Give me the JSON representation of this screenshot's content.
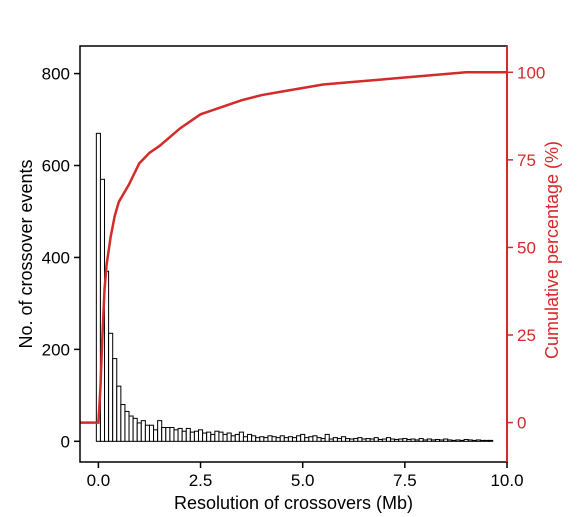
{
  "chart_data": {
    "type": "bar",
    "title": "",
    "xlabel": "Resolution of crossovers (Mb)",
    "ylabel": "No. of crossover events",
    "y2label": "Cumulative percentage (%)",
    "xlim": [
      -0.45,
      10.0
    ],
    "ylim": [
      -45,
      860
    ],
    "y2lim": [
      -11.25,
      107.5
    ],
    "xticks": [
      "0.0",
      "2.5",
      "5.0",
      "7.5",
      "10.0"
    ],
    "xtick_values": [
      0,
      2.5,
      5.0,
      7.5,
      10.0
    ],
    "yticks": [
      "0",
      "200",
      "400",
      "600",
      "800"
    ],
    "ytick_values": [
      0,
      200,
      400,
      600,
      800
    ],
    "y2ticks": [
      "0",
      "25",
      "50",
      "75",
      "100"
    ],
    "y2tick_values": [
      0,
      25,
      50,
      75,
      100
    ],
    "grid": false,
    "legend": "none",
    "colors": {
      "bars": "#000000",
      "bar_fill": "#ffffff",
      "cumulative": "#d42a2a",
      "y2axis": "#d42a2a"
    },
    "histogram": {
      "bin_width": 0.1,
      "bin_start": -0.05,
      "counts": [
        670,
        570,
        370,
        235,
        180,
        120,
        80,
        65,
        55,
        50,
        40,
        45,
        35,
        35,
        25,
        45,
        30,
        30,
        30,
        25,
        28,
        22,
        28,
        20,
        22,
        25,
        18,
        20,
        15,
        22,
        20,
        15,
        18,
        12,
        15,
        20,
        10,
        15,
        12,
        8,
        10,
        8,
        12,
        10,
        8,
        12,
        8,
        10,
        8,
        12,
        15,
        8,
        10,
        12,
        8,
        6,
        15,
        5,
        8,
        6,
        10,
        6,
        5,
        6,
        8,
        5,
        6,
        5,
        8,
        4,
        5,
        8,
        5,
        4,
        5,
        6,
        4,
        5,
        3,
        6,
        3,
        5,
        3,
        4,
        3,
        5,
        3,
        2,
        3,
        2,
        4,
        3,
        2,
        3,
        2,
        2,
        2
      ]
    },
    "cumulative": {
      "x": [
        -0.45,
        0.0,
        0.05,
        0.1,
        0.15,
        0.2,
        0.3,
        0.4,
        0.5,
        0.75,
        1.0,
        1.25,
        1.5,
        2.0,
        2.5,
        3.0,
        3.5,
        4.0,
        4.5,
        5.0,
        5.5,
        6.0,
        6.5,
        7.0,
        7.5,
        8.0,
        8.5,
        9.0,
        9.5,
        10.0
      ],
      "y": [
        0,
        0,
        10,
        25,
        38,
        45,
        53,
        59,
        63,
        68,
        74,
        77,
        79,
        84,
        88,
        90,
        92,
        93.5,
        94.5,
        95.5,
        96.5,
        97,
        97.5,
        98,
        98.5,
        99,
        99.5,
        100,
        100,
        100
      ]
    }
  }
}
